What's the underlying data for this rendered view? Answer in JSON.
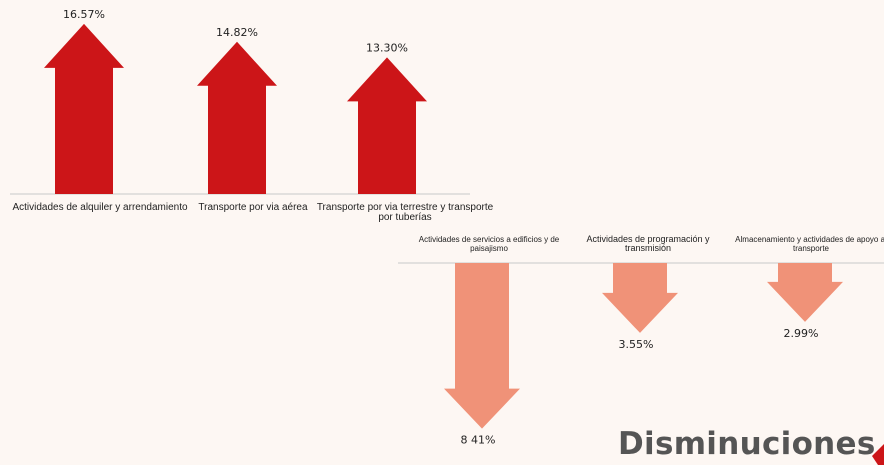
{
  "chart_data": [
    {
      "type": "bar",
      "orientation": "arrows-up",
      "categories": [
        "Actividades de alquiler y arrendamiento",
        "Transporte por via aérea",
        "Transporte por via terrestre y transporte por tuberías"
      ],
      "values": [
        16.57,
        14.82,
        13.3
      ],
      "labels": [
        "16.57%",
        "14.82%",
        "13.30%"
      ],
      "color": "#cc1518"
    },
    {
      "type": "bar",
      "orientation": "arrows-down",
      "categories": [
        "Actividades de servicios a edificios y de paisajismo",
        "Actividades de programación y transmisión",
        "Almacenamiento y actividades de apoyo al transporte"
      ],
      "values": [
        8.41,
        3.55,
        2.99
      ],
      "labels": [
        "8 41%",
        "3.55%",
        "2.99%"
      ],
      "title": "Disminuciones",
      "color": "#f09278"
    }
  ]
}
